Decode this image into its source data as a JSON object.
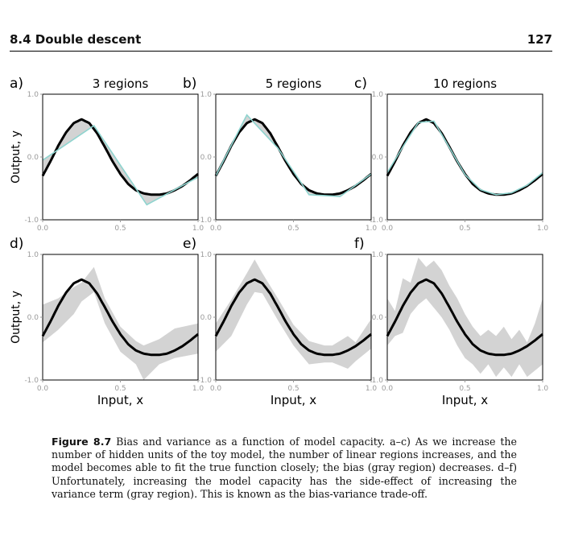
{
  "header": {
    "section": "8.4   Double descent",
    "page_number": "127"
  },
  "figure": {
    "colors": {
      "true_fn": "#000000",
      "fit": "#8ed4cf",
      "gray": "#d3d3d3",
      "axes": "#000000",
      "ticks": "#9a9a9a"
    },
    "x_ticks": [
      "0.0",
      "0.5",
      "1.0"
    ],
    "y_ticks": [
      "1.0",
      "0.0",
      "-1.0"
    ],
    "ylabel": "Output, y",
    "xlabel": "Input, x",
    "panels": [
      {
        "id": "a",
        "label": "a)",
        "title": "3 regions"
      },
      {
        "id": "b",
        "label": "b)",
        "title": "5 regions"
      },
      {
        "id": "c",
        "label": "c)",
        "title": "10 regions"
      },
      {
        "id": "d",
        "label": "d)",
        "title": ""
      },
      {
        "id": "e",
        "label": "e)",
        "title": ""
      },
      {
        "id": "f",
        "label": "f)",
        "title": ""
      }
    ]
  },
  "chart_data": [
    {
      "type": "line",
      "panel": "a",
      "title": "3 regions",
      "xlim": [
        0,
        1
      ],
      "ylim": [
        -1,
        1
      ],
      "series": [
        {
          "role": "true-function",
          "x": [
            0,
            0.05,
            0.1,
            0.15,
            0.2,
            0.25,
            0.3,
            0.35,
            0.4,
            0.45,
            0.5,
            0.55,
            0.6,
            0.65,
            0.7,
            0.75,
            0.8,
            0.85,
            0.9,
            0.95,
            1.0
          ],
          "y": [
            -0.3,
            -0.07,
            0.18,
            0.39,
            0.54,
            0.6,
            0.54,
            0.38,
            0.16,
            -0.07,
            -0.27,
            -0.43,
            -0.53,
            -0.58,
            -0.6,
            -0.6,
            -0.58,
            -0.53,
            -0.46,
            -0.37,
            -0.27
          ]
        },
        {
          "role": "fit",
          "x": [
            0,
            0.33,
            0.67,
            1.0
          ],
          "y": [
            -0.05,
            0.5,
            -0.76,
            -0.32
          ]
        }
      ]
    },
    {
      "type": "line",
      "panel": "b",
      "title": "5 regions",
      "xlim": [
        0,
        1
      ],
      "ylim": [
        -1,
        1
      ],
      "series": [
        {
          "role": "true-function",
          "x": [
            0,
            0.05,
            0.1,
            0.15,
            0.2,
            0.25,
            0.3,
            0.35,
            0.4,
            0.45,
            0.5,
            0.55,
            0.6,
            0.65,
            0.7,
            0.75,
            0.8,
            0.85,
            0.9,
            0.95,
            1.0
          ],
          "y": [
            -0.3,
            -0.07,
            0.18,
            0.39,
            0.54,
            0.6,
            0.54,
            0.38,
            0.16,
            -0.07,
            -0.27,
            -0.43,
            -0.53,
            -0.58,
            -0.6,
            -0.6,
            -0.58,
            -0.53,
            -0.46,
            -0.37,
            -0.27
          ]
        },
        {
          "role": "fit",
          "x": [
            0,
            0.2,
            0.4,
            0.6,
            0.8,
            1.0
          ],
          "y": [
            -0.3,
            0.67,
            0.14,
            -0.6,
            -0.63,
            -0.27
          ]
        }
      ]
    },
    {
      "type": "line",
      "panel": "c",
      "title": "10 regions",
      "xlim": [
        0,
        1
      ],
      "ylim": [
        -1,
        1
      ],
      "series": [
        {
          "role": "true-function",
          "x": [
            0,
            0.05,
            0.1,
            0.15,
            0.2,
            0.25,
            0.3,
            0.35,
            0.4,
            0.45,
            0.5,
            0.55,
            0.6,
            0.65,
            0.7,
            0.75,
            0.8,
            0.85,
            0.9,
            0.95,
            1.0
          ],
          "y": [
            -0.3,
            -0.07,
            0.18,
            0.39,
            0.54,
            0.6,
            0.54,
            0.38,
            0.16,
            -0.07,
            -0.27,
            -0.43,
            -0.53,
            -0.58,
            -0.6,
            -0.6,
            -0.58,
            -0.53,
            -0.46,
            -0.37,
            -0.27
          ]
        },
        {
          "role": "fit",
          "x": [
            0,
            0.1,
            0.2,
            0.3,
            0.4,
            0.5,
            0.6,
            0.7,
            0.8,
            0.9,
            1.0
          ],
          "y": [
            -0.25,
            0.16,
            0.55,
            0.57,
            0.15,
            -0.28,
            -0.52,
            -0.6,
            -0.57,
            -0.45,
            -0.25
          ]
        }
      ]
    },
    {
      "type": "area",
      "panel": "d",
      "xlim": [
        0,
        1
      ],
      "ylim": [
        -1,
        1
      ],
      "series": [
        {
          "role": "true-function",
          "x": [
            0,
            0.05,
            0.1,
            0.15,
            0.2,
            0.25,
            0.3,
            0.35,
            0.4,
            0.45,
            0.5,
            0.55,
            0.6,
            0.65,
            0.7,
            0.75,
            0.8,
            0.85,
            0.9,
            0.95,
            1.0
          ],
          "y": [
            -0.3,
            -0.07,
            0.18,
            0.39,
            0.54,
            0.6,
            0.54,
            0.38,
            0.16,
            -0.07,
            -0.27,
            -0.43,
            -0.53,
            -0.58,
            -0.6,
            -0.6,
            -0.58,
            -0.53,
            -0.46,
            -0.37,
            -0.27
          ]
        },
        {
          "role": "variance-band",
          "x": [
            0,
            0.1,
            0.2,
            0.25,
            0.33,
            0.4,
            0.5,
            0.6,
            0.65,
            0.75,
            0.85,
            1.0
          ],
          "upper": [
            0.2,
            0.3,
            0.48,
            0.55,
            0.8,
            0.3,
            -0.15,
            -0.38,
            -0.45,
            -0.35,
            -0.18,
            -0.1
          ],
          "lower": [
            -0.4,
            -0.2,
            0.05,
            0.25,
            0.4,
            -0.1,
            -0.55,
            -0.75,
            -1.0,
            -0.75,
            -0.65,
            -0.58
          ]
        }
      ]
    },
    {
      "type": "area",
      "panel": "e",
      "xlim": [
        0,
        1
      ],
      "ylim": [
        -1,
        1
      ],
      "series": [
        {
          "role": "true-function",
          "x": [
            0,
            0.05,
            0.1,
            0.15,
            0.2,
            0.25,
            0.3,
            0.35,
            0.4,
            0.45,
            0.5,
            0.55,
            0.6,
            0.65,
            0.7,
            0.75,
            0.8,
            0.85,
            0.9,
            0.95,
            1.0
          ],
          "y": [
            -0.3,
            -0.07,
            0.18,
            0.39,
            0.54,
            0.6,
            0.54,
            0.38,
            0.16,
            -0.07,
            -0.27,
            -0.43,
            -0.53,
            -0.58,
            -0.6,
            -0.6,
            -0.58,
            -0.53,
            -0.46,
            -0.37,
            -0.27
          ]
        },
        {
          "role": "variance-band",
          "x": [
            0,
            0.1,
            0.2,
            0.25,
            0.3,
            0.4,
            0.5,
            0.6,
            0.7,
            0.75,
            0.85,
            0.9,
            1.0
          ],
          "upper": [
            -0.1,
            0.28,
            0.7,
            0.92,
            0.7,
            0.3,
            -0.12,
            -0.38,
            -0.45,
            -0.45,
            -0.3,
            -0.4,
            -0.03
          ],
          "lower": [
            -0.55,
            -0.3,
            0.2,
            0.4,
            0.38,
            -0.05,
            -0.45,
            -0.75,
            -0.72,
            -0.72,
            -0.82,
            -0.7,
            -0.5
          ]
        }
      ]
    },
    {
      "type": "area",
      "panel": "f",
      "xlim": [
        0,
        1
      ],
      "ylim": [
        -1,
        1
      ],
      "series": [
        {
          "role": "true-function",
          "x": [
            0,
            0.05,
            0.1,
            0.15,
            0.2,
            0.25,
            0.3,
            0.35,
            0.4,
            0.45,
            0.5,
            0.55,
            0.6,
            0.65,
            0.7,
            0.75,
            0.8,
            0.85,
            0.9,
            0.95,
            1.0
          ],
          "y": [
            -0.3,
            -0.07,
            0.18,
            0.39,
            0.54,
            0.6,
            0.54,
            0.38,
            0.16,
            -0.07,
            -0.27,
            -0.43,
            -0.53,
            -0.58,
            -0.6,
            -0.6,
            -0.58,
            -0.53,
            -0.46,
            -0.37,
            -0.27
          ]
        },
        {
          "role": "variance-band",
          "x": [
            0,
            0.05,
            0.1,
            0.15,
            0.2,
            0.25,
            0.3,
            0.35,
            0.4,
            0.45,
            0.5,
            0.55,
            0.6,
            0.65,
            0.7,
            0.75,
            0.8,
            0.85,
            0.9,
            0.95,
            1.0
          ],
          "upper": [
            0.3,
            0.1,
            0.62,
            0.55,
            0.95,
            0.8,
            0.9,
            0.75,
            0.5,
            0.3,
            0.05,
            -0.15,
            -0.3,
            -0.2,
            -0.3,
            -0.15,
            -0.35,
            -0.2,
            -0.4,
            -0.1,
            0.3
          ],
          "lower": [
            -0.45,
            -0.3,
            -0.25,
            0.05,
            0.2,
            0.3,
            0.15,
            0.0,
            -0.2,
            -0.45,
            -0.65,
            -0.75,
            -0.9,
            -0.75,
            -0.95,
            -0.8,
            -0.95,
            -0.75,
            -0.95,
            -0.85,
            -0.75
          ]
        }
      ]
    }
  ],
  "caption": {
    "label": "Figure 8.7",
    "text": "Bias and variance as a function of model capacity.  a–c) As we increase the number of hidden units of the toy model, the number of linear regions increases, and the model becomes able to fit the true function closely; the bias (gray region) decreases.  d–f) Unfortunately, increasing the model capacity has the side-effect of increasing the variance term (gray region). This is known as the bias-variance trade-off."
  }
}
